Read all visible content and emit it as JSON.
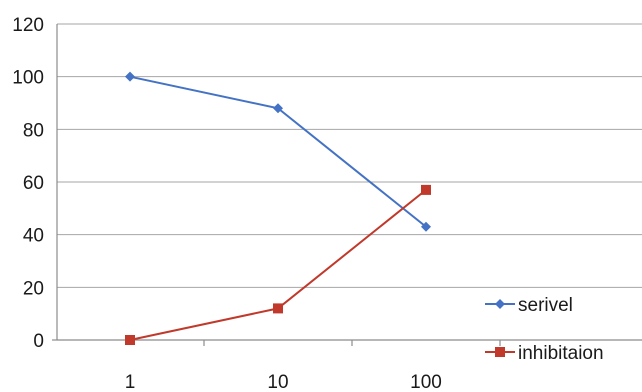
{
  "chart_data": {
    "type": "line",
    "title": "",
    "xlabel": "",
    "ylabel": "",
    "categories": [
      "1",
      "10",
      "100"
    ],
    "ylim": [
      0,
      120
    ],
    "yticks": [
      "0",
      "20",
      "40",
      "60",
      "80",
      "100",
      "120"
    ],
    "grid": true,
    "legend_position": "bottom-right",
    "series": [
      {
        "name": "serivel",
        "values": [
          100,
          88,
          43
        ],
        "color": "#4472C4",
        "marker": "diamond"
      },
      {
        "name": "inhibitaion",
        "values": [
          0,
          12,
          57
        ],
        "color": "#C0392B",
        "marker": "square"
      }
    ]
  }
}
